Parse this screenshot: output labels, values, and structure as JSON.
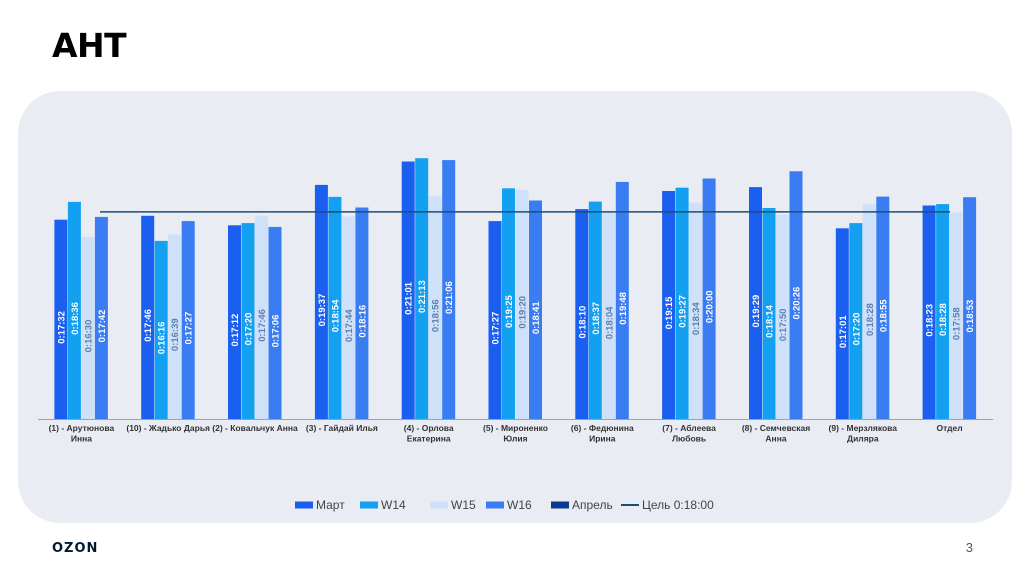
{
  "slide": {
    "title": "AHT",
    "logo": "OZON",
    "page_number": "3"
  },
  "chart_data": {
    "type": "bar",
    "title": "AHT",
    "unit": "mm:ss within hour 0",
    "categories": [
      [
        "(1) - Арутюнова",
        "Инна"
      ],
      [
        "(10) - Жадько Дарья"
      ],
      [
        "(2) - Ковальчук Анна"
      ],
      [
        "(3) - Гайдай Илья"
      ],
      [
        "(4) - Орлова",
        "Екатерина"
      ],
      [
        "(5) - Мироненко",
        "Юлия"
      ],
      [
        "(6) - Федюнина",
        "Ирина"
      ],
      [
        "(7) - Аблеева",
        "Любовь"
      ],
      [
        "(8) - Семчевская",
        "Анна"
      ],
      [
        "(9) - Мерзлякова",
        "Диляра"
      ],
      [
        "Отдел"
      ]
    ],
    "series": [
      {
        "name": "Март",
        "color": "#1a5ff0",
        "values": [
          "0:17:32",
          "0:17:46",
          "0:17:12",
          "0:19:37",
          "0:21:01",
          "0:17:27",
          "0:18:10",
          "0:19:15",
          "0:19:29",
          "0:17:01",
          "0:18:23"
        ]
      },
      {
        "name": "W14",
        "color": "#13a0f0",
        "values": [
          "0:18:36",
          "0:16:16",
          "0:17:20",
          "0:18:54",
          "0:21:13",
          "0:19:25",
          "0:18:37",
          "0:19:27",
          "0:18:14",
          "0:17:20",
          "0:18:28"
        ]
      },
      {
        "name": "W15",
        "color": "#cfe1f9",
        "values": [
          "0:16:30",
          "0:16:39",
          "0:17:46",
          "0:17:44",
          "0:18:56",
          "0:19:20",
          "0:18:04",
          "0:18:34",
          "0:17:50",
          "0:18:28",
          "0:17:58"
        ]
      },
      {
        "name": "W16",
        "color": "#3a7cf2",
        "values": [
          "0:17:42",
          "0:17:27",
          "0:17:06",
          "0:18:16",
          "0:21:06",
          "0:18:41",
          "0:19:48",
          "0:20:00",
          "0:20:26",
          "0:18:55",
          "0:18:53"
        ]
      }
    ],
    "extra_legend": [
      {
        "name": "Апрель",
        "color": "#0b3a8c",
        "kind": "bar"
      },
      {
        "name": "Цель 0:18:00",
        "color": "#1e4d73",
        "kind": "line"
      }
    ],
    "target": {
      "label": "Цель 0:18:00",
      "value": "0:18:00"
    },
    "ylim": [
      0,
      1350
    ],
    "legend_position": "bottom"
  }
}
